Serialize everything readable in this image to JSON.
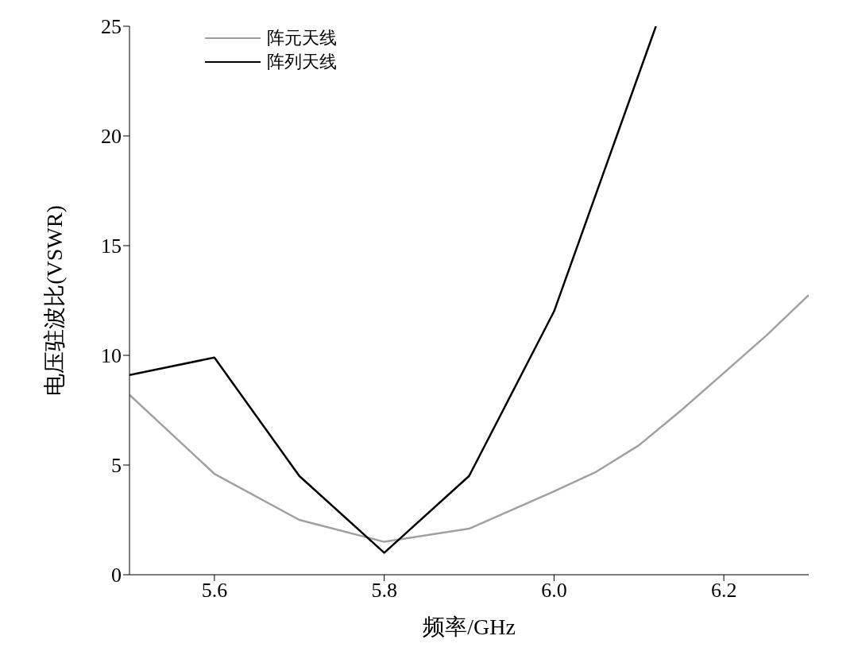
{
  "chart_data": {
    "type": "line",
    "xlabel": "频率/GHz",
    "ylabel": "电压驻波比(VSWR)",
    "xlim": [
      5.5,
      6.3
    ],
    "xticks": [
      {
        "value": 5.6,
        "label": "5.6"
      },
      {
        "value": 5.8,
        "label": "5.8"
      },
      {
        "value": 6.0,
        "label": "6.0"
      },
      {
        "value": 6.2,
        "label": "6.2"
      }
    ],
    "ylim": [
      0,
      25
    ],
    "yticks": [
      0,
      5,
      10,
      15,
      20,
      25
    ],
    "grid": false,
    "legend": "top left",
    "marker": "none",
    "line_style": "solid",
    "series": [
      {
        "name": "阵元天线",
        "color": "#a0a0a0",
        "x": [
          5.5,
          5.6,
          5.7,
          5.8,
          5.9,
          6.0,
          6.05,
          6.1,
          6.15,
          6.2,
          6.25,
          6.3
        ],
        "values": [
          8.2,
          4.6,
          2.5,
          1.5,
          2.1,
          3.8,
          4.7,
          5.9,
          7.5,
          9.2,
          10.9,
          12.75
        ]
      },
      {
        "name": "阵列天线",
        "color": "#000000",
        "x": [
          5.5,
          5.6,
          5.7,
          5.8,
          5.9,
          6.0,
          6.12
        ],
        "values": [
          9.1,
          9.9,
          4.5,
          1.0,
          4.5,
          12.0,
          25
        ]
      }
    ]
  }
}
